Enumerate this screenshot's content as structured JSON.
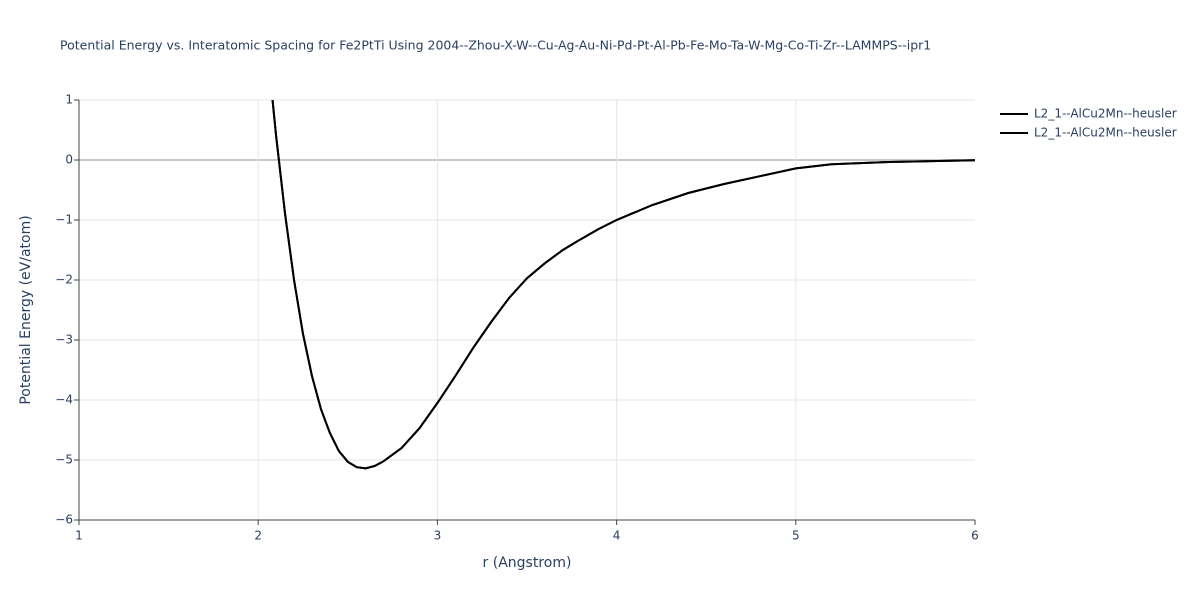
{
  "chart_data": {
    "type": "line",
    "title": "Potential Energy vs. Interatomic Spacing for Fe2PtTi Using 2004--Zhou-X-W--Cu-Ag-Au-Ni-Pd-Pt-Al-Pb-Fe-Mo-Ta-W-Mg-Co-Ti-Zr--LAMMPS--ipr1",
    "x_label": "r (Angstrom)",
    "y_label": "Potential Energy (eV/atom)",
    "x": [
      2.08,
      2.1,
      2.15,
      2.2,
      2.25,
      2.3,
      2.35,
      2.4,
      2.45,
      2.5,
      2.55,
      2.6,
      2.65,
      2.7,
      2.8,
      2.9,
      3.0,
      3.1,
      3.2,
      3.3,
      3.4,
      3.5,
      3.6,
      3.7,
      3.8,
      3.9,
      4.0,
      4.2,
      4.4,
      4.6,
      4.8,
      5.0,
      5.2,
      5.5,
      6.0
    ],
    "series": [
      {
        "name": "L2_1--AlCu2Mn--heusler",
        "color": "#000000",
        "values": [
          1,
          0.4,
          -0.9,
          -2.0,
          -2.9,
          -3.6,
          -4.15,
          -4.55,
          -4.85,
          -5.03,
          -5.12,
          -5.14,
          -5.1,
          -5.02,
          -4.8,
          -4.47,
          -4.05,
          -3.6,
          -3.13,
          -2.7,
          -2.3,
          -1.97,
          -1.72,
          -1.5,
          -1.32,
          -1.15,
          -1.0,
          -0.75,
          -0.55,
          -0.4,
          -0.27,
          -0.14,
          -0.07,
          -0.035,
          -0.005
        ]
      },
      {
        "name": "L2_1--AlCu2Mn--heusler",
        "color": "#000000",
        "values": [
          1,
          0.4,
          -0.9,
          -2.0,
          -2.9,
          -3.6,
          -4.15,
          -4.55,
          -4.85,
          -5.03,
          -5.12,
          -5.14,
          -5.1,
          -5.02,
          -4.8,
          -4.47,
          -4.05,
          -3.6,
          -3.13,
          -2.7,
          -2.3,
          -1.97,
          -1.72,
          -1.5,
          -1.32,
          -1.15,
          -1.0,
          -0.75,
          -0.55,
          -0.4,
          -0.27,
          -0.14,
          -0.07,
          -0.035,
          -0.005
        ]
      }
    ],
    "xlim": [
      1,
      6
    ],
    "xticks": [
      1,
      2,
      3,
      4,
      5,
      6
    ],
    "ylim": [
      -6,
      1
    ],
    "yticks": [
      {
        "value": -6,
        "label": "−6"
      },
      {
        "value": -5,
        "label": "−5"
      },
      {
        "value": -4,
        "label": "−4"
      },
      {
        "value": -3,
        "label": "−3"
      },
      {
        "value": -2,
        "label": "−2"
      },
      {
        "value": -1,
        "label": "−1"
      },
      0,
      1
    ],
    "grid": true,
    "legend": "top-right"
  }
}
